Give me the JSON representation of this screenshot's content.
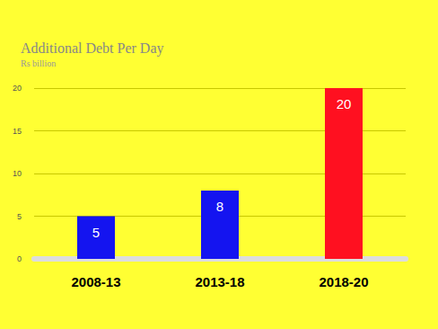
{
  "chart_data": {
    "type": "bar",
    "title": "Additional Debt Per Day",
    "subtitle": "Rs billion",
    "categories": [
      "2008-13",
      "2013-18",
      "2018-20"
    ],
    "values": [
      5,
      8,
      20
    ],
    "colors": [
      "#1414f0",
      "#1414f0",
      "#ff1020"
    ],
    "ylim": [
      0,
      20
    ],
    "yticks": [
      0,
      5,
      10,
      15,
      20
    ],
    "grid": true,
    "data_labels": true
  }
}
